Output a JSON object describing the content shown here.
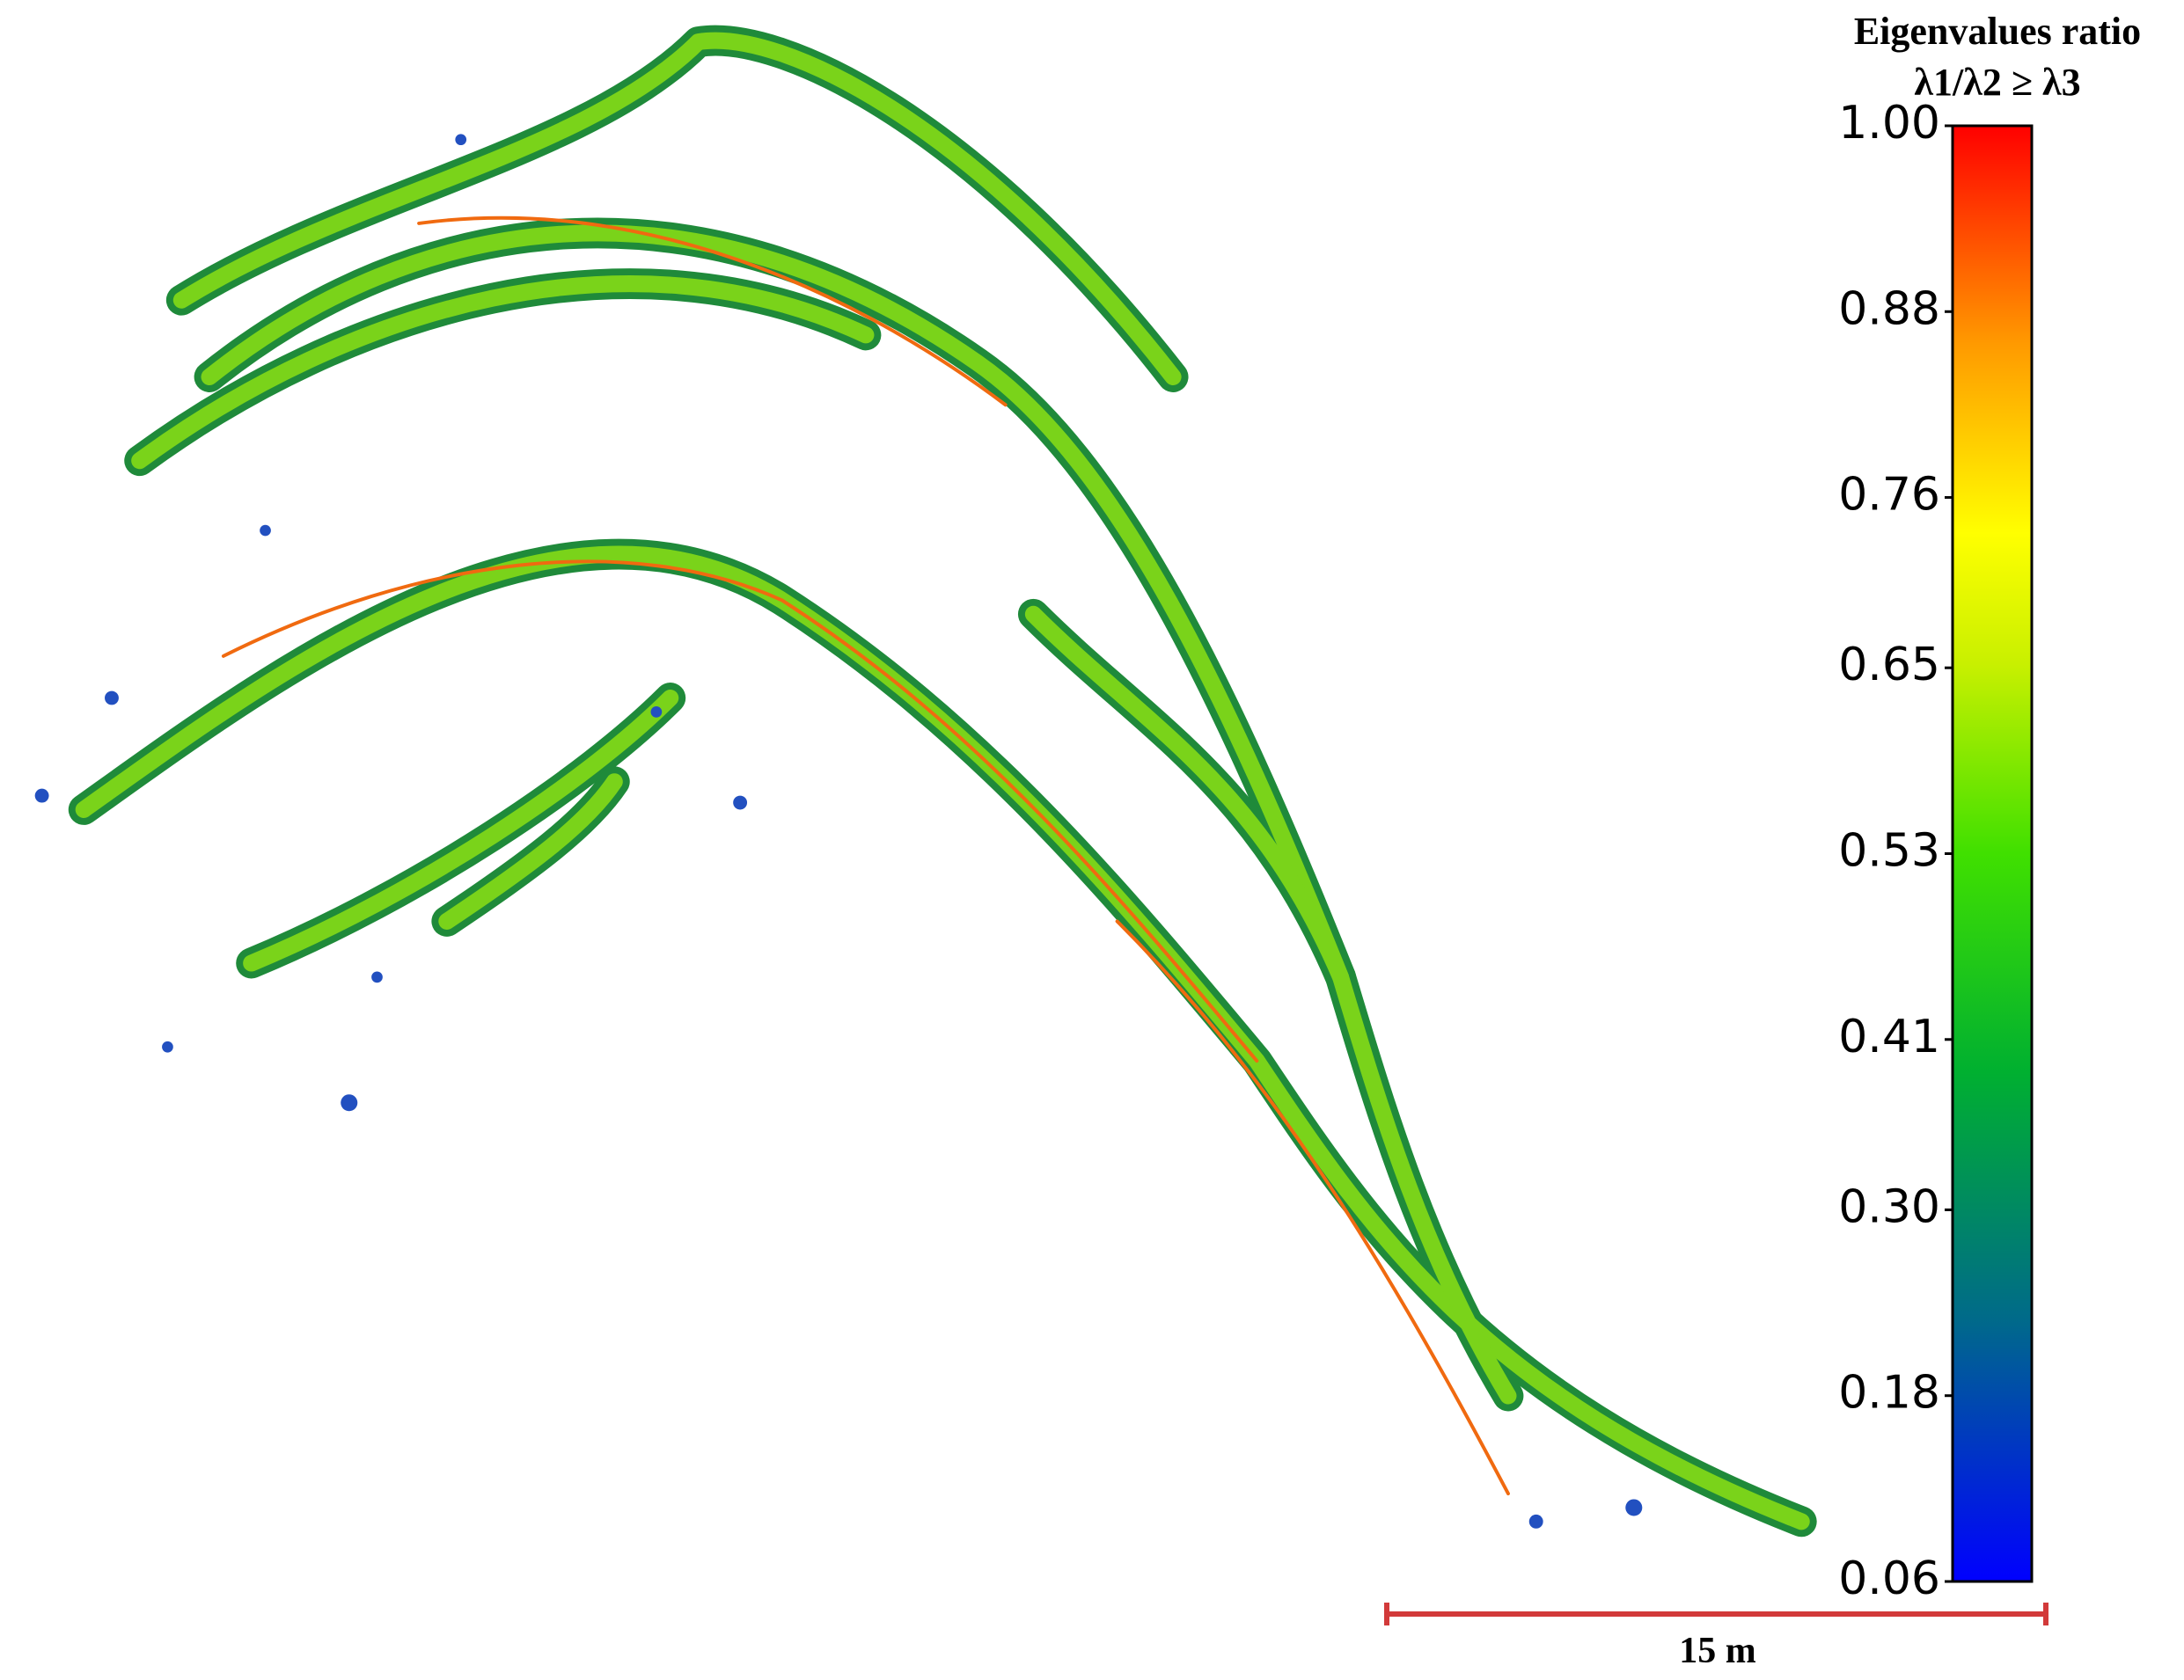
{
  "colorbar": {
    "title": [
      "Eigenvalues ratio",
      "λ1/λ2 ≥ λ3"
    ],
    "lim": [
      0.06,
      1.0
    ],
    "ticks": [
      {
        "value": 1.0,
        "label": "1.00"
      },
      {
        "value": 0.88,
        "label": "0.88"
      },
      {
        "value": 0.76,
        "label": "0.76"
      },
      {
        "value": 0.65,
        "label": "0.65"
      },
      {
        "value": 0.53,
        "label": "0.53"
      },
      {
        "value": 0.41,
        "label": "0.41"
      },
      {
        "value": 0.3,
        "label": "0.30"
      },
      {
        "value": 0.18,
        "label": "0.18"
      },
      {
        "value": 0.06,
        "label": "0.06"
      }
    ]
  },
  "scale_bar": {
    "label": "15 m"
  }
}
